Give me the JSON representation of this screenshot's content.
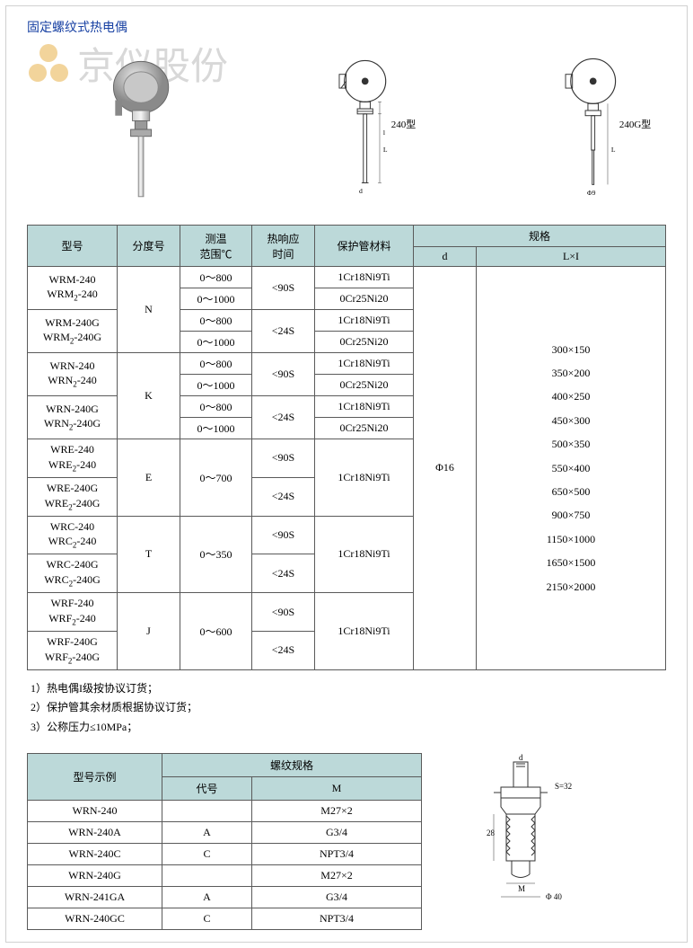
{
  "title": "固定螺纹式热电偶",
  "watermark_text": "京仪股份",
  "diagram_labels": {
    "d240": "240型",
    "d240g": "240G型",
    "dia": "Φ16"
  },
  "colors": {
    "title": "#1841a3",
    "header_bg": "#bcd9d9",
    "border": "#5a5a5a",
    "watermark": "#d8d8d8",
    "page_border": "#d0d0d0"
  },
  "main_table": {
    "headers": {
      "model": "型号",
      "grad": "分度号",
      "range": "测温\n范围℃",
      "resp": "热响应\n时间",
      "material": "保护管材料",
      "spec": "规格",
      "d": "d",
      "lxi": "L×I"
    },
    "d_value": "Φ16",
    "spec_values": [
      "300×150",
      "350×200",
      "400×250",
      "450×300",
      "500×350",
      "550×400",
      "650×500",
      "900×750",
      "1150×1000",
      "1650×1500",
      "2150×2000"
    ],
    "rows": [
      {
        "model": "WRM-240\nWRM₂-240",
        "grad": "N",
        "range": "0～800",
        "resp": "<90S",
        "mat": "1Cr18Ni9Ti"
      },
      {
        "model": "",
        "grad": "",
        "range": "0～1000",
        "resp": "",
        "mat": "0Cr25Ni20"
      },
      {
        "model": "WRM-240G\nWRM₂-240G",
        "grad": "",
        "range": "0～800",
        "resp": "<24S",
        "mat": "1Cr18Ni9Ti"
      },
      {
        "model": "",
        "grad": "",
        "range": "0～1000",
        "resp": "",
        "mat": "0Cr25Ni20"
      },
      {
        "model": "WRN-240\nWRN₂-240",
        "grad": "K",
        "range": "0～800",
        "resp": "<90S",
        "mat": "1Cr18Ni9Ti"
      },
      {
        "model": "",
        "grad": "",
        "range": "0～1000",
        "resp": "",
        "mat": "0Cr25Ni20"
      },
      {
        "model": "WRN-240G\nWRN₂-240G",
        "grad": "",
        "range": "0～800",
        "resp": "<24S",
        "mat": "1Cr18Ni9Ti"
      },
      {
        "model": "",
        "grad": "",
        "range": "0～1000",
        "resp": "",
        "mat": "0Cr25Ni20"
      },
      {
        "model": "WRE-240\nWRE₂-240",
        "grad": "E",
        "range": "0～700",
        "resp": "<90S",
        "mat": "1Cr18Ni9Ti"
      },
      {
        "model": "WRE-240G\nWRE₂-240G",
        "grad": "",
        "range": "",
        "resp": "<24S",
        "mat": ""
      },
      {
        "model": "WRC-240\nWRC₂-240",
        "grad": "T",
        "range": "0～350",
        "resp": "<90S",
        "mat": "1Cr18Ni9Ti"
      },
      {
        "model": "WRC-240G\nWRC₂-240G",
        "grad": "",
        "range": "",
        "resp": "<24S",
        "mat": ""
      },
      {
        "model": "WRF-240\nWRF₂-240",
        "grad": "J",
        "range": "0～600",
        "resp": "<90S",
        "mat": "1Cr18Ni9Ti"
      },
      {
        "model": "WRF-240G\nWRF₂-240G",
        "grad": "",
        "range": "",
        "resp": "<24S",
        "mat": ""
      }
    ]
  },
  "notes": [
    "1）热电偶I级按协议订货；",
    "2）保护管其余材质根据协议订货；",
    "3）公称压力≤10MPa；"
  ],
  "thread_table": {
    "headers": {
      "example": "型号示例",
      "thread": "螺纹规格",
      "code": "代号",
      "m": "M"
    },
    "rows": [
      {
        "model": "WRN-240",
        "code": "",
        "m": "M27×2"
      },
      {
        "model": "WRN-240A",
        "code": "A",
        "m": "G3/4"
      },
      {
        "model": "WRN-240C",
        "code": "C",
        "m": "NPT3/4"
      },
      {
        "model": "WRN-240G",
        "code": "",
        "m": "M27×2"
      },
      {
        "model": "WRN-241GA",
        "code": "A",
        "m": "G3/4"
      },
      {
        "model": "WRN-240GC",
        "code": "C",
        "m": "NPT3/4"
      }
    ]
  },
  "screw_labels": {
    "d": "d",
    "s": "S=32",
    "h": "28",
    "m": "M",
    "dia": "Φ 40"
  }
}
